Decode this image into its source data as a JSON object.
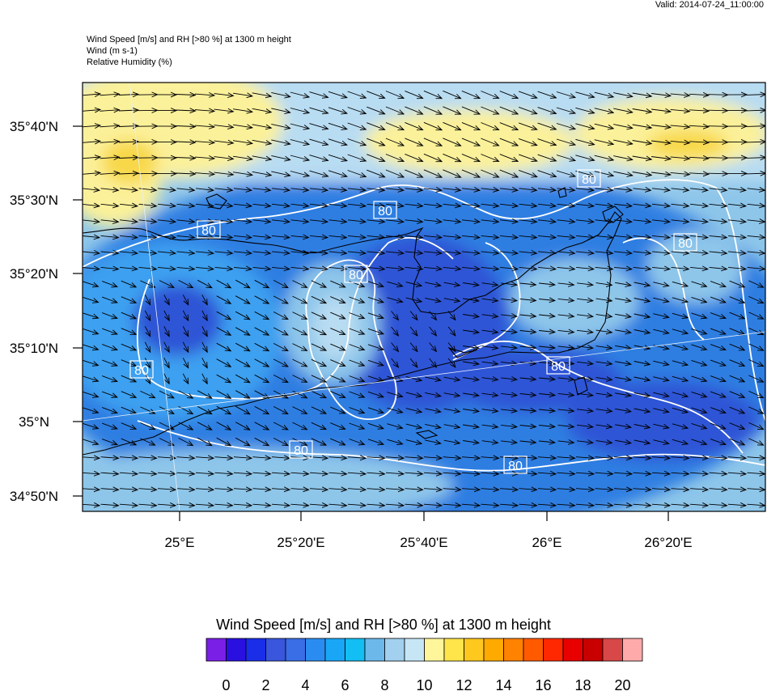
{
  "header": {
    "valid": "Valid: 2014-07-24_11:00:00",
    "title_lines": [
      "Wind Speed [m/s] and RH [>80 %] at 1300 m height",
      "Wind   (m s-1)",
      "Relative Humidity   (%)"
    ]
  },
  "map": {
    "lat_labels": [
      "35°40'N",
      "35°30'N",
      "35°20'N",
      "35°10'N",
      "35°N",
      "34°50'N"
    ],
    "lon_labels": [
      "25°E",
      "25°20'E",
      "25°40'E",
      "26°E",
      "26°20'E"
    ],
    "contour_label": "80",
    "contour_label_count": 9
  },
  "colorbar": {
    "title": "Wind Speed [m/s] and RH [>80 %] at 1300 m height",
    "tick_labels": [
      "0",
      "2",
      "4",
      "6",
      "8",
      "10",
      "12",
      "14",
      "16",
      "18",
      "20"
    ],
    "colors": [
      "#7a1fe6",
      "#2a10e0",
      "#1a2ee8",
      "#3a56dc",
      "#3a6ee6",
      "#2a8cf0",
      "#1aa6f6",
      "#12bef4",
      "#6cb8ea",
      "#a2d0ee",
      "#c6e6f6",
      "#fff59a",
      "#ffe44a",
      "#ffc81e",
      "#ffaa00",
      "#ff8200",
      "#ff5a00",
      "#ff2800",
      "#e80000",
      "#c80000",
      "#d84848",
      "#ffaaaa"
    ]
  },
  "field_colors": {
    "light": "#b8dcf2",
    "sky": "#8ec6ea",
    "mid": "#3da0f0",
    "blue": "#2f7ee2",
    "dark": "#2f55d6",
    "yellow": "#fbf19a",
    "gold": "#f8d84a",
    "land": "#000000",
    "contour": "#ffffff"
  }
}
